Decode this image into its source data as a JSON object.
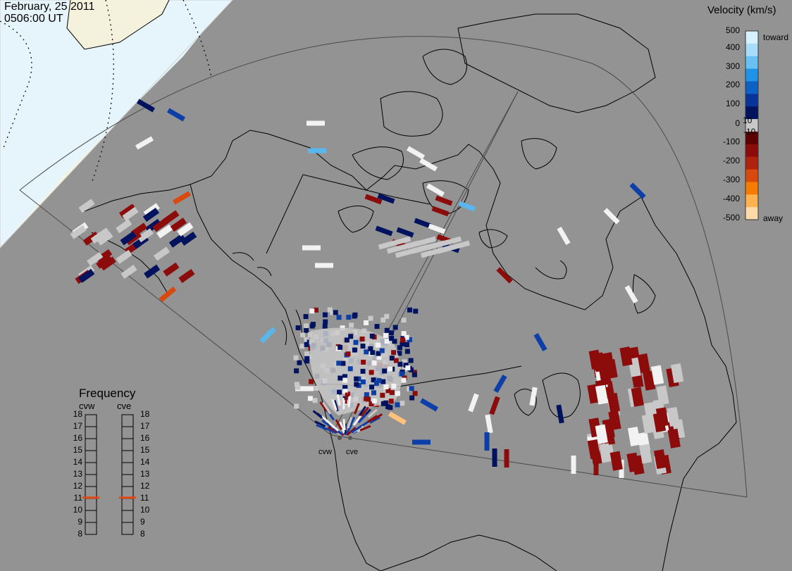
{
  "header": {
    "date": "February, 25 2011",
    "time": "0506:00 UT"
  },
  "colorbar": {
    "title": "Velocity (km/s)",
    "ticks": [
      "500",
      "400",
      "300",
      "200",
      "100",
      "10",
      "0",
      "-10",
      "-100",
      "-200",
      "-300",
      "-400",
      "-500"
    ],
    "toward_label": "toward",
    "away_label": "away",
    "colors": [
      "#d6f1ff",
      "#a7ddf9",
      "#68c2f1",
      "#1f93e6",
      "#0c62c4",
      "#06349a",
      "#01135f",
      "#c8c8c8",
      "#5c0000",
      "#8c0b0b",
      "#b0220d",
      "#d9480c",
      "#f57c00",
      "#ffb24d",
      "#ffd9a8"
    ]
  },
  "frequency": {
    "title": "Frequency",
    "radars": [
      {
        "code": "cvw",
        "current_mhz": 11.1
      },
      {
        "code": "cve",
        "current_mhz": 11.1
      }
    ],
    "ticks": [
      "18",
      "17",
      "16",
      "15",
      "14",
      "13",
      "12",
      "11",
      "10",
      "9",
      "8"
    ]
  },
  "sites": [
    {
      "code": "cvw"
    },
    {
      "code": "cve"
    }
  ]
}
